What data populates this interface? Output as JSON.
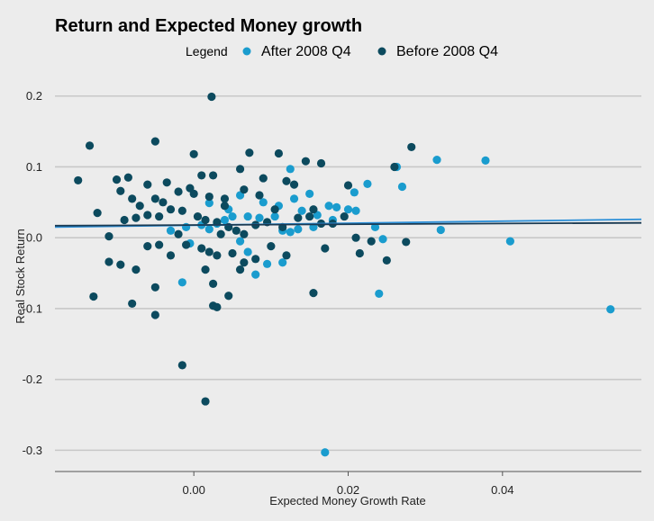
{
  "chart_data": {
    "type": "scatter",
    "title": "Return and Expected Money growth",
    "xlabel": "Expected Money Growth Rate",
    "ylabel": "Real Stock Return",
    "xlim": [
      -0.018,
      0.058
    ],
    "ylim": [
      -0.33,
      0.22
    ],
    "xticks": [
      0.0,
      0.02,
      0.04
    ],
    "xtick_labels": [
      "0.00",
      "0.02",
      "0.04"
    ],
    "yticks": [
      0.2,
      0.1,
      0.0,
      -0.1,
      -0.2,
      -0.3
    ],
    "ytick_labels": [
      "0.2",
      "0.1",
      "0.0",
      "-0.1",
      "-0.2",
      "-0.3"
    ],
    "grid": "horizontal",
    "legend": {
      "title": "Legend",
      "position": "top",
      "entries": [
        "After 2008 Q4",
        "Before 2008 Q4"
      ]
    },
    "series": [
      {
        "name": "After 2008 Q4",
        "color": "#1a9cce",
        "points": [
          [
            0.0315,
            0.11
          ],
          [
            0.0378,
            0.109
          ],
          [
            0.0263,
            0.1
          ],
          [
            0.0225,
            0.076
          ],
          [
            0.027,
            0.072
          ],
          [
            0.0208,
            0.064
          ],
          [
            0.0125,
            0.097
          ],
          [
            0.015,
            0.062
          ],
          [
            0.002,
            0.049
          ],
          [
            0.006,
            0.06
          ],
          [
            0.009,
            0.05
          ],
          [
            0.011,
            0.045
          ],
          [
            0.013,
            0.055
          ],
          [
            0.014,
            0.038
          ],
          [
            0.016,
            0.032
          ],
          [
            0.0175,
            0.045
          ],
          [
            0.0185,
            0.043
          ],
          [
            0.02,
            0.04
          ],
          [
            0.021,
            0.038
          ],
          [
            0.0105,
            0.03
          ],
          [
            0.0085,
            0.028
          ],
          [
            0.007,
            0.03
          ],
          [
            0.005,
            0.03
          ],
          [
            0.004,
            0.025
          ],
          [
            0.003,
            0.02
          ],
          [
            0.001,
            0.018
          ],
          [
            -0.001,
            0.015
          ],
          [
            -0.003,
            0.01
          ],
          [
            0.0115,
            0.01
          ],
          [
            0.0125,
            0.008
          ],
          [
            0.0135,
            0.012
          ],
          [
            0.0155,
            0.015
          ],
          [
            0.0235,
            0.015
          ],
          [
            0.0245,
            -0.002
          ],
          [
            0.032,
            0.011
          ],
          [
            0.041,
            -0.005
          ],
          [
            0.018,
            0.025
          ],
          [
            0.006,
            -0.005
          ],
          [
            0.007,
            -0.02
          ],
          [
            0.008,
            -0.052
          ],
          [
            0.0095,
            -0.037
          ],
          [
            0.0115,
            -0.035
          ],
          [
            -0.0015,
            -0.063
          ],
          [
            0.024,
            -0.079
          ],
          [
            0.054,
            -0.101
          ],
          [
            0.017,
            -0.303
          ],
          [
            -0.0005,
            -0.008
          ],
          [
            0.0045,
            0.04
          ],
          [
            0.002,
            0.012
          ]
        ]
      },
      {
        "name": "Before 2008 Q4",
        "color": "#0c4a5e",
        "points": [
          [
            0.0023,
            0.199
          ],
          [
            -0.0135,
            0.13
          ],
          [
            -0.005,
            0.136
          ],
          [
            0.0,
            0.118
          ],
          [
            0.0072,
            0.12
          ],
          [
            0.011,
            0.119
          ],
          [
            0.0282,
            0.128
          ],
          [
            -0.015,
            0.081
          ],
          [
            -0.01,
            0.082
          ],
          [
            -0.0085,
            0.085
          ],
          [
            -0.006,
            0.075
          ],
          [
            -0.0035,
            0.078
          ],
          [
            -0.0005,
            0.07
          ],
          [
            0.001,
            0.088
          ],
          [
            0.0025,
            0.088
          ],
          [
            0.006,
            0.097
          ],
          [
            0.009,
            0.084
          ],
          [
            0.012,
            0.08
          ],
          [
            0.0145,
            0.108
          ],
          [
            0.0165,
            0.105
          ],
          [
            0.02,
            0.074
          ],
          [
            0.026,
            0.1
          ],
          [
            -0.0125,
            0.035
          ],
          [
            -0.0095,
            0.066
          ],
          [
            -0.008,
            0.055
          ],
          [
            -0.007,
            0.045
          ],
          [
            -0.005,
            0.055
          ],
          [
            -0.004,
            0.05
          ],
          [
            -0.002,
            0.065
          ],
          [
            0.0,
            0.062
          ],
          [
            0.002,
            0.058
          ],
          [
            0.004,
            0.055
          ],
          [
            0.0065,
            0.068
          ],
          [
            0.0085,
            0.06
          ],
          [
            0.0105,
            0.04
          ],
          [
            0.013,
            0.075
          ],
          [
            0.0155,
            0.04
          ],
          [
            0.018,
            0.02
          ],
          [
            0.0195,
            0.03
          ],
          [
            -0.011,
            0.002
          ],
          [
            -0.009,
            0.025
          ],
          [
            -0.0075,
            0.028
          ],
          [
            -0.006,
            0.032
          ],
          [
            -0.0045,
            0.03
          ],
          [
            -0.003,
            0.04
          ],
          [
            -0.0015,
            0.038
          ],
          [
            0.0005,
            0.03
          ],
          [
            0.0015,
            0.025
          ],
          [
            0.003,
            0.022
          ],
          [
            0.0045,
            0.015
          ],
          [
            0.0055,
            0.01
          ],
          [
            0.0065,
            0.005
          ],
          [
            0.008,
            0.018
          ],
          [
            0.0095,
            0.022
          ],
          [
            0.0115,
            0.015
          ],
          [
            0.0135,
            0.028
          ],
          [
            0.015,
            0.03
          ],
          [
            0.0165,
            0.02
          ],
          [
            0.021,
            0.0
          ],
          [
            0.023,
            -0.005
          ],
          [
            0.0275,
            -0.006
          ],
          [
            0.025,
            -0.032
          ],
          [
            -0.011,
            -0.034
          ],
          [
            -0.0095,
            -0.038
          ],
          [
            -0.0075,
            -0.045
          ],
          [
            -0.006,
            -0.012
          ],
          [
            -0.0045,
            -0.01
          ],
          [
            -0.003,
            -0.025
          ],
          [
            -0.001,
            -0.01
          ],
          [
            0.001,
            -0.015
          ],
          [
            0.002,
            -0.02
          ],
          [
            0.003,
            -0.025
          ],
          [
            0.005,
            -0.022
          ],
          [
            0.0065,
            -0.035
          ],
          [
            0.008,
            -0.03
          ],
          [
            0.01,
            -0.012
          ],
          [
            0.012,
            -0.025
          ],
          [
            0.017,
            -0.015
          ],
          [
            0.0215,
            -0.022
          ],
          [
            -0.013,
            -0.083
          ],
          [
            -0.008,
            -0.093
          ],
          [
            -0.005,
            -0.07
          ],
          [
            0.0015,
            -0.045
          ],
          [
            0.0025,
            -0.065
          ],
          [
            0.0045,
            -0.082
          ],
          [
            0.0155,
            -0.078
          ],
          [
            -0.005,
            -0.109
          ],
          [
            0.0025,
            -0.096
          ],
          [
            0.003,
            -0.098
          ],
          [
            -0.0015,
            -0.18
          ],
          [
            0.0015,
            -0.231
          ],
          [
            0.006,
            -0.045
          ],
          [
            0.0035,
            0.005
          ],
          [
            -0.002,
            0.005
          ],
          [
            0.004,
            0.045
          ]
        ]
      }
    ],
    "trend_lines": [
      {
        "series": "After 2008 Q4",
        "color": "#2b8fd8",
        "x": [
          -0.018,
          0.058
        ],
        "y": [
          0.015,
          0.026
        ]
      },
      {
        "series": "Before 2008 Q4",
        "color": "#1a3a52",
        "x": [
          -0.018,
          0.058
        ],
        "y": [
          0.017,
          0.021
        ]
      }
    ]
  }
}
